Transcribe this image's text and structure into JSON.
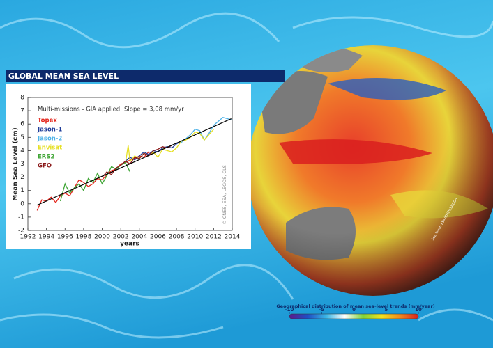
{
  "chart_data": {
    "type": "line",
    "title": "GLOBAL MEAN SEA LEVEL",
    "subtitle": "Multi-missions - GIA applied",
    "slope_label": "Slope = 3,08 mm/yr",
    "x_label": "years",
    "y_label": "Mean Sea Level (cm)",
    "credit": "© CNES, ESA, LEGOS, CLS",
    "xlim": [
      1992,
      2014
    ],
    "xticks": [
      1992,
      1994,
      1996,
      1998,
      2000,
      2002,
      2004,
      2006,
      2008,
      2010,
      2012,
      2014
    ],
    "ylim": [
      -2,
      8
    ],
    "yticks": [
      -2,
      -1,
      0,
      1,
      2,
      3,
      4,
      5,
      6,
      7,
      8
    ],
    "series": [
      {
        "name": "Topex",
        "color": "#e3241b",
        "x": [
          1993,
          1993.5,
          1994,
          1994.5,
          1995,
          1995.5,
          1996,
          1996.5,
          1997,
          1997.5,
          1998,
          1998.5,
          1999,
          1999.5,
          2000,
          2000.5,
          2001,
          2001.5,
          2002,
          2002.5,
          2003,
          2003.5,
          2004,
          2004.5,
          2005,
          2005.5
        ],
        "values": [
          -0.5,
          0.3,
          0.2,
          0.5,
          0.1,
          0.6,
          0.8,
          0.6,
          1.2,
          1.8,
          1.6,
          1.3,
          1.5,
          1.9,
          1.8,
          2.2,
          2.5,
          2.6,
          3.0,
          3.1,
          3.3,
          3.4,
          3.6,
          3.5,
          3.9,
          3.8
        ]
      },
      {
        "name": "Jason-1",
        "color": "#1f3d99",
        "x": [
          2002,
          2002.5,
          2003,
          2003.5,
          2004,
          2004.5,
          2005,
          2005.5,
          2006,
          2006.5,
          2007,
          2007.5,
          2008,
          2008.5,
          2009
        ],
        "values": [
          2.9,
          3.2,
          3.5,
          3.3,
          3.6,
          3.9,
          3.7,
          4.0,
          3.9,
          4.2,
          4.3,
          4.2,
          4.5,
          4.7,
          4.9
        ]
      },
      {
        "name": "Jason-2",
        "color": "#4fb3e8",
        "x": [
          2008.5,
          2009,
          2009.5,
          2010,
          2010.5,
          2011,
          2011.5,
          2012,
          2012.5,
          2013,
          2013.5,
          2014
        ],
        "values": [
          4.6,
          4.9,
          5.2,
          5.6,
          5.5,
          4.8,
          5.3,
          5.9,
          6.2,
          6.5,
          6.4,
          6.3
        ]
      },
      {
        "name": "Envisat",
        "color": "#e6e024",
        "x": [
          2002.5,
          2002.8,
          2003,
          2003.5,
          2004,
          2004.5,
          2005,
          2005.5,
          2006,
          2006.5,
          2007,
          2007.5,
          2008,
          2008.5,
          2009,
          2009.5,
          2010,
          2010.5,
          2011,
          2011.5,
          2012
        ],
        "values": [
          3.0,
          4.4,
          3.2,
          3.6,
          3.4,
          3.8,
          3.6,
          3.9,
          3.5,
          4.1,
          4.0,
          3.9,
          4.2,
          4.7,
          4.8,
          5.0,
          5.4,
          5.3,
          4.8,
          5.2,
          5.6
        ]
      },
      {
        "name": "ERS2",
        "color": "#3fa535",
        "x": [
          1995.5,
          1996,
          1996.5,
          1997,
          1997.5,
          1998,
          1998.5,
          1999,
          1999.5,
          2000,
          2000.5,
          2001,
          2001.5,
          2002,
          2002.5,
          2003
        ],
        "values": [
          0.2,
          1.5,
          0.8,
          1.2,
          1.5,
          1.0,
          1.9,
          1.6,
          2.3,
          1.5,
          2.1,
          2.8,
          2.6,
          2.9,
          3.1,
          2.4
        ]
      },
      {
        "name": "GFO",
        "color": "#8b1a1a",
        "x": [
          2000,
          2000.5,
          2001,
          2001.5,
          2002,
          2002.5,
          2003,
          2003.5,
          2004,
          2004.5,
          2005,
          2005.5,
          2006,
          2006.5,
          2007,
          2007.5
        ],
        "values": [
          2.0,
          2.4,
          2.2,
          2.7,
          2.9,
          3.2,
          3.0,
          3.5,
          3.4,
          3.8,
          3.6,
          4.0,
          4.1,
          4.3,
          4.2,
          4.4
        ]
      }
    ],
    "trend_line": {
      "color": "#000000",
      "x": [
        1993,
        2013.9
      ],
      "values": [
        -0.1,
        6.4
      ]
    },
    "colorbar": {
      "title": "Geographical distribution of mean sea-level trends (mm/year)",
      "lim": [
        -10,
        10
      ],
      "ticks": [
        -10,
        -5,
        0,
        5,
        10
      ],
      "colors": [
        "#5b1a8c",
        "#1f4fc4",
        "#39b6e6",
        "#ffffff",
        "#7fd23a",
        "#f2e21f",
        "#f08a1c",
        "#d81e1e"
      ]
    },
    "map_credit": "Sea level: ESA/CNES/LEGOS"
  }
}
